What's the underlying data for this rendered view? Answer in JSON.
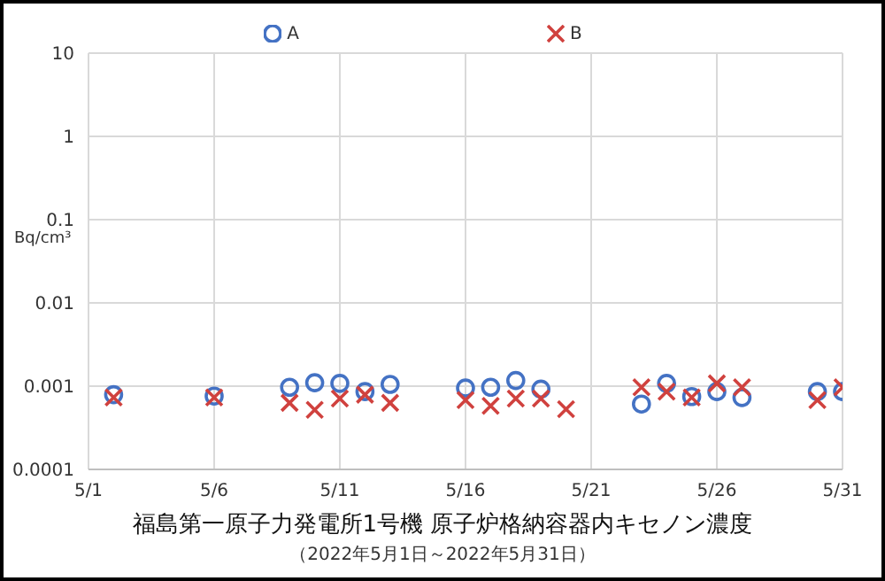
{
  "chart_data": {
    "type": "scatter",
    "title": "福島第一原子力発電所1号機 原子炉格納容器内キセノン濃度",
    "subtitle": "（2022年5月1日～2022年5月31日）",
    "ylabel": "Bq/cm³",
    "log": "y",
    "grid": true,
    "legend": "top",
    "x": [
      "2022-05-02",
      "2022-05-06",
      "2022-05-09",
      "2022-05-10",
      "2022-05-11",
      "2022-05-12",
      "2022-05-13",
      "2022-05-16",
      "2022-05-17",
      "2022-05-18",
      "2022-05-19",
      "2022-05-23",
      "2022-05-24",
      "2022-05-25",
      "2022-05-26",
      "2022-05-27",
      "2022-05-30",
      "2022-05-31"
    ],
    "xlim": [
      "2022-05-01",
      "2022-05-31"
    ],
    "xticks": [
      {
        "value": "2022-05-01",
        "label": "5/1"
      },
      {
        "value": "2022-05-06",
        "label": "5/6"
      },
      {
        "value": "2022-05-11",
        "label": "5/11"
      },
      {
        "value": "2022-05-16",
        "label": "5/16"
      },
      {
        "value": "2022-05-21",
        "label": "5/21"
      },
      {
        "value": "2022-05-26",
        "label": "5/26"
      },
      {
        "value": "2022-05-31",
        "label": "5/31"
      }
    ],
    "ylim": [
      0.0001,
      10
    ],
    "yticks": [
      0.0001,
      0.001,
      0.01,
      0.1,
      1,
      10
    ],
    "series": [
      {
        "name": "A",
        "color": "#4472c4",
        "marker": "circle",
        "values": [
          0.00079,
          0.00076,
          0.00097,
          0.0011,
          0.00108,
          0.00086,
          0.00105,
          0.00095,
          0.00097,
          0.00117,
          0.00092,
          0.00061,
          0.00108,
          0.00075,
          0.00086,
          0.00073,
          0.00086,
          0.00086
        ]
      },
      {
        "name": "B",
        "color": "#d0413e",
        "marker": "cross",
        "x": [
          "2022-05-02",
          "2022-05-06",
          "2022-05-09",
          "2022-05-10",
          "2022-05-11",
          "2022-05-12",
          "2022-05-13",
          "2022-05-16",
          "2022-05-17",
          "2022-05-18",
          "2022-05-19",
          "2022-05-20",
          "2022-05-23",
          "2022-05-24",
          "2022-05-25",
          "2022-05-26",
          "2022-05-27",
          "2022-05-30",
          "2022-05-31"
        ],
        "values": [
          0.00073,
          0.00073,
          0.00063,
          0.00052,
          0.00071,
          0.00079,
          0.00063,
          0.00068,
          0.00058,
          0.00071,
          0.00071,
          0.00053,
          0.00097,
          0.00086,
          0.00073,
          0.00108,
          0.00097,
          0.00068,
          0.00097
        ]
      }
    ]
  }
}
